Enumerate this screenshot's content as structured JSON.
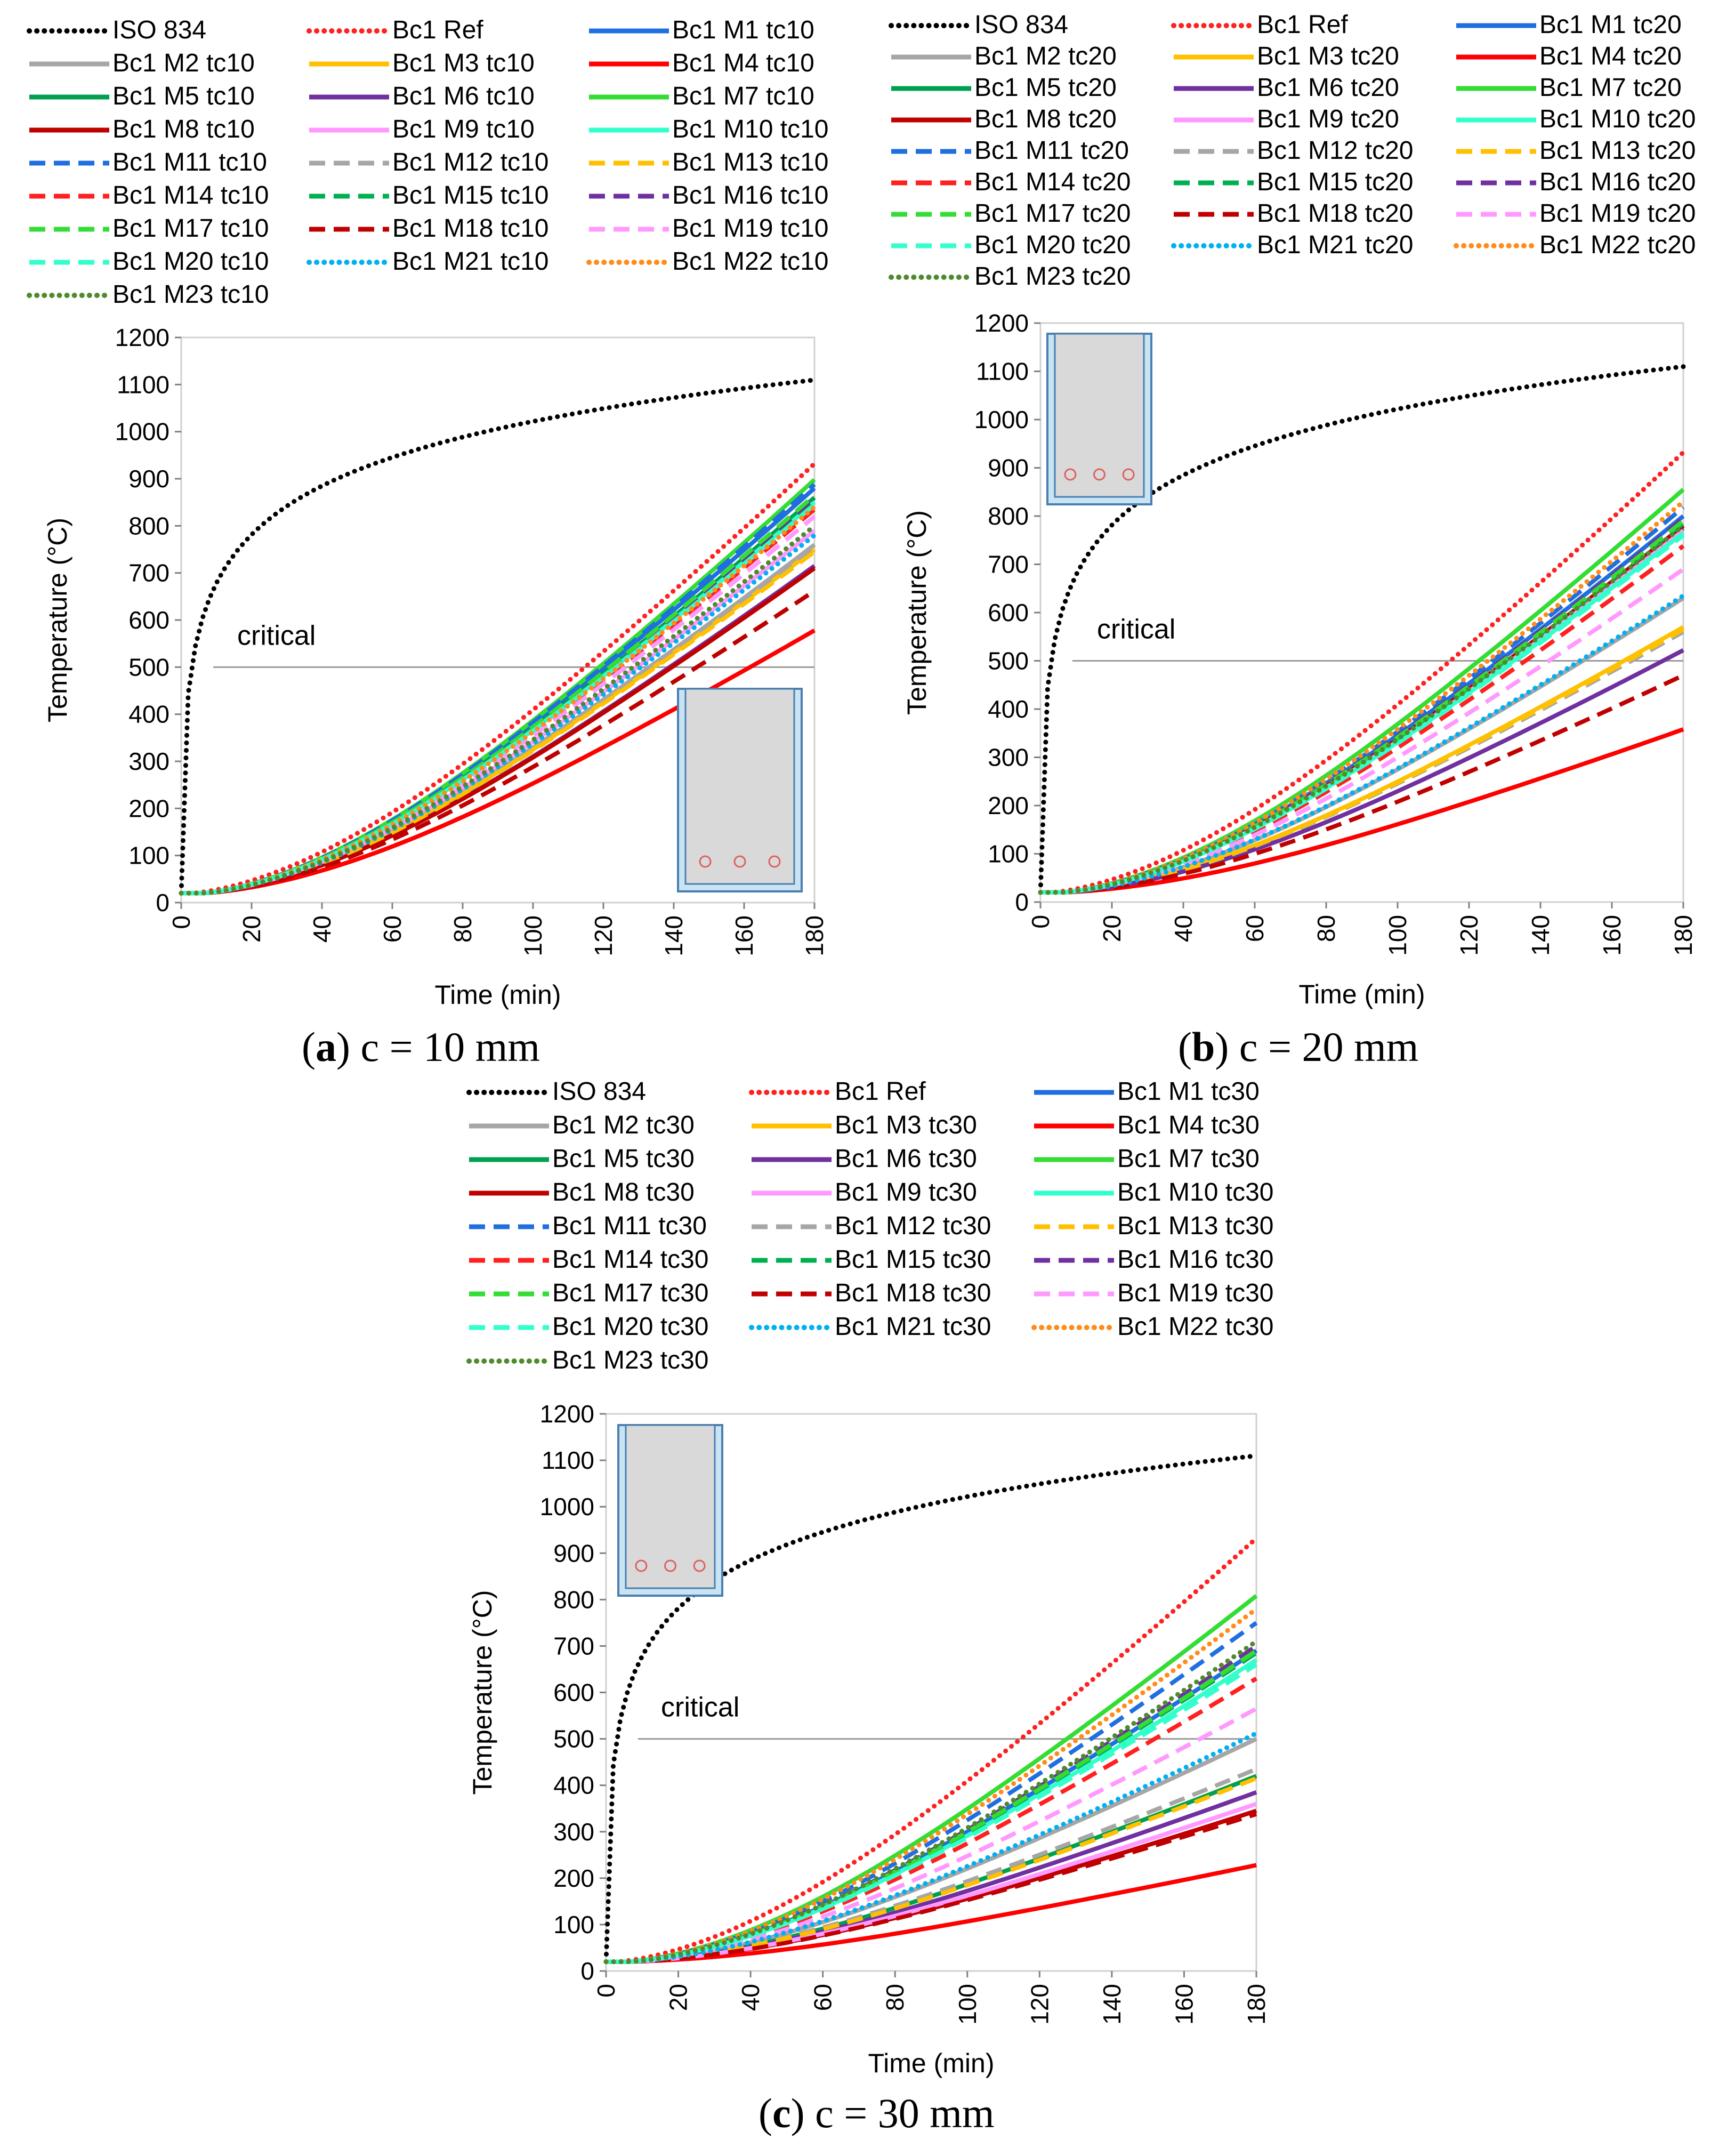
{
  "chart_data": [
    {
      "type": "line",
      "panel": "a",
      "caption_letter": "a",
      "caption_text": " c = 10 mm",
      "xlabel": "Time (min)",
      "ylabel": "Temperature (°C)",
      "xlim": [
        0,
        180
      ],
      "ylim": [
        0,
        1200
      ],
      "xticks": [
        "0",
        "20",
        "40",
        "60",
        "80",
        "100",
        "120",
        "140",
        "160",
        "180"
      ],
      "yticks": [
        "0",
        "100",
        "200",
        "300",
        "400",
        "500",
        "600",
        "700",
        "800",
        "900",
        "1000",
        "1100",
        "1200"
      ],
      "critical_label": "critical",
      "critical_value": 500,
      "inset": "beam cross-section, insulation on sides and bottom, 3 rebars",
      "series": [
        {
          "name": "ISO 834",
          "color": "#000000",
          "style": "dot",
          "end": 1110
        },
        {
          "name": "Bc1 Ref",
          "color": "#ff2020",
          "style": "dot",
          "end": 932
        },
        {
          "name": "Bc1 M1 tc10",
          "color": "#1f6fe0",
          "style": "solid",
          "end": 880
        },
        {
          "name": "Bc1 M2 tc10",
          "color": "#a6a6a6",
          "style": "solid",
          "end": 760
        },
        {
          "name": "Bc1 M3 tc10",
          "color": "#ffc000",
          "style": "solid",
          "end": 750
        },
        {
          "name": "Bc1 M4 tc10",
          "color": "#ff0000",
          "style": "solid",
          "end": 578
        },
        {
          "name": "Bc1 M5 tc10",
          "color": "#00a050",
          "style": "solid",
          "end": 860
        },
        {
          "name": "Bc1 M6 tc10",
          "color": "#7030a0",
          "style": "solid",
          "end": 715
        },
        {
          "name": "Bc1 M7 tc10",
          "color": "#33dd33",
          "style": "solid",
          "end": 898
        },
        {
          "name": "Bc1 M8 tc10",
          "color": "#c00000",
          "style": "solid",
          "end": 710
        },
        {
          "name": "Bc1 M9 tc10",
          "color": "#ff99ff",
          "style": "solid",
          "end": 790
        },
        {
          "name": "Bc1 M10 tc10",
          "color": "#33ffcc",
          "style": "solid",
          "end": 850
        },
        {
          "name": "Bc1 M11 tc10",
          "color": "#1f6fe0",
          "style": "dash",
          "end": 888
        },
        {
          "name": "Bc1 M12 tc10",
          "color": "#a6a6a6",
          "style": "dash",
          "end": 755
        },
        {
          "name": "Bc1 M13 tc10",
          "color": "#ffc000",
          "style": "dash",
          "end": 745
        },
        {
          "name": "Bc1 M14 tc10",
          "color": "#ff2020",
          "style": "dash",
          "end": 835
        },
        {
          "name": "Bc1 M15 tc10",
          "color": "#00b050",
          "style": "dash",
          "end": 855
        },
        {
          "name": "Bc1 M16 tc10",
          "color": "#7030a0",
          "style": "dash",
          "end": 860
        },
        {
          "name": "Bc1 M17 tc10",
          "color": "#33dd33",
          "style": "dash",
          "end": 865
        },
        {
          "name": "Bc1 M18 tc10",
          "color": "#c00000",
          "style": "dash",
          "end": 662
        },
        {
          "name": "Bc1 M19 tc10",
          "color": "#ff99ff",
          "style": "dash",
          "end": 820
        },
        {
          "name": "Bc1 M20 tc10",
          "color": "#33ffcc",
          "style": "dash",
          "end": 845
        },
        {
          "name": "Bc1 M21 tc10",
          "color": "#00b0f0",
          "style": "dot",
          "end": 780
        },
        {
          "name": "Bc1 M22 tc10",
          "color": "#ff8c1a",
          "style": "dot",
          "end": 840
        },
        {
          "name": "Bc1 M23 tc10",
          "color": "#4f8a2c",
          "style": "dot",
          "end": 800
        }
      ]
    },
    {
      "type": "line",
      "panel": "b",
      "caption_letter": "b",
      "caption_text": " c = 20 mm",
      "xlabel": "Time (min)",
      "ylabel": "Temperature (°C)",
      "xlim": [
        0,
        180
      ],
      "ylim": [
        0,
        1200
      ],
      "xticks": [
        "0",
        "20",
        "40",
        "60",
        "80",
        "100",
        "120",
        "140",
        "160",
        "180"
      ],
      "yticks": [
        "0",
        "100",
        "200",
        "300",
        "400",
        "500",
        "600",
        "700",
        "800",
        "900",
        "1000",
        "1100",
        "1200"
      ],
      "critical_label": "critical",
      "critical_value": 500,
      "inset": "beam cross-section, insulation on sides and bottom, 3 rebars",
      "series": [
        {
          "name": "ISO 834",
          "color": "#000000",
          "style": "dot",
          "end": 1110
        },
        {
          "name": "Bc1 Ref",
          "color": "#ff2020",
          "style": "dot",
          "end": 932
        },
        {
          "name": "Bc1 M1 tc20",
          "color": "#1f6fe0",
          "style": "solid",
          "end": 800
        },
        {
          "name": "Bc1 M2 tc20",
          "color": "#a6a6a6",
          "style": "solid",
          "end": 630
        },
        {
          "name": "Bc1 M3 tc20",
          "color": "#ffc000",
          "style": "solid",
          "end": 570
        },
        {
          "name": "Bc1 M4 tc20",
          "color": "#ff0000",
          "style": "solid",
          "end": 358
        },
        {
          "name": "Bc1 M5 tc20",
          "color": "#00a050",
          "style": "solid",
          "end": 775
        },
        {
          "name": "Bc1 M6 tc20",
          "color": "#7030a0",
          "style": "solid",
          "end": 522
        },
        {
          "name": "Bc1 M7 tc20",
          "color": "#33dd33",
          "style": "solid",
          "end": 855
        },
        {
          "name": "Bc1 M8 tc20",
          "color": "#c00000",
          "style": "solid",
          "end": 780
        },
        {
          "name": "Bc1 M9 tc20",
          "color": "#ff99ff",
          "style": "solid",
          "end": 770
        },
        {
          "name": "Bc1 M10 tc20",
          "color": "#33ffcc",
          "style": "solid",
          "end": 765
        },
        {
          "name": "Bc1 M11 tc20",
          "color": "#1f6fe0",
          "style": "dash",
          "end": 818
        },
        {
          "name": "Bc1 M12 tc20",
          "color": "#a6a6a6",
          "style": "dash",
          "end": 560
        },
        {
          "name": "Bc1 M13 tc20",
          "color": "#ffc000",
          "style": "dash",
          "end": 565
        },
        {
          "name": "Bc1 M14 tc20",
          "color": "#ff2020",
          "style": "dash",
          "end": 738
        },
        {
          "name": "Bc1 M15 tc20",
          "color": "#00b050",
          "style": "dash",
          "end": 785
        },
        {
          "name": "Bc1 M16 tc20",
          "color": "#7030a0",
          "style": "dash",
          "end": 795
        },
        {
          "name": "Bc1 M17 tc20",
          "color": "#33dd33",
          "style": "dash",
          "end": 790
        },
        {
          "name": "Bc1 M18 tc20",
          "color": "#c00000",
          "style": "dash",
          "end": 470
        },
        {
          "name": "Bc1 M19 tc20",
          "color": "#ff99ff",
          "style": "dash",
          "end": 690
        },
        {
          "name": "Bc1 M20 tc20",
          "color": "#33ffcc",
          "style": "dash",
          "end": 760
        },
        {
          "name": "Bc1 M21 tc20",
          "color": "#00b0f0",
          "style": "dot",
          "end": 635
        },
        {
          "name": "Bc1 M22 tc20",
          "color": "#ff8c1a",
          "style": "dot",
          "end": 830
        },
        {
          "name": "Bc1 M23 tc20",
          "color": "#4f8a2c",
          "style": "dot",
          "end": 780
        }
      ]
    },
    {
      "type": "line",
      "panel": "c",
      "caption_letter": "c",
      "caption_text": " c = 30 mm",
      "xlabel": "Time (min)",
      "ylabel": "Temperature (°C)",
      "xlim": [
        0,
        180
      ],
      "ylim": [
        0,
        1200
      ],
      "xticks": [
        "0",
        "20",
        "40",
        "60",
        "80",
        "100",
        "120",
        "140",
        "160",
        "180"
      ],
      "yticks": [
        "0",
        "100",
        "200",
        "300",
        "400",
        "500",
        "600",
        "700",
        "800",
        "900",
        "1000",
        "1100",
        "1200"
      ],
      "critical_label": "critical",
      "critical_value": 500,
      "inset": "beam cross-section, insulation on sides and bottom, 3 rebars",
      "series": [
        {
          "name": "ISO 834",
          "color": "#000000",
          "style": "dot",
          "end": 1110
        },
        {
          "name": "Bc1 Ref",
          "color": "#ff2020",
          "style": "dot",
          "end": 932
        },
        {
          "name": "Bc1 M1 tc30",
          "color": "#1f6fe0",
          "style": "solid",
          "end": 690
        },
        {
          "name": "Bc1 M2 tc30",
          "color": "#a6a6a6",
          "style": "solid",
          "end": 500
        },
        {
          "name": "Bc1 M3 tc30",
          "color": "#ffc000",
          "style": "solid",
          "end": 420
        },
        {
          "name": "Bc1 M4 tc30",
          "color": "#ff0000",
          "style": "solid",
          "end": 228
        },
        {
          "name": "Bc1 M5 tc30",
          "color": "#00a050",
          "style": "solid",
          "end": 420
        },
        {
          "name": "Bc1 M6 tc30",
          "color": "#7030a0",
          "style": "solid",
          "end": 385
        },
        {
          "name": "Bc1 M7 tc30",
          "color": "#33dd33",
          "style": "solid",
          "end": 808
        },
        {
          "name": "Bc1 M8 tc30",
          "color": "#c00000",
          "style": "solid",
          "end": 345
        },
        {
          "name": "Bc1 M9 tc30",
          "color": "#ff99ff",
          "style": "solid",
          "end": 360
        },
        {
          "name": "Bc1 M10 tc30",
          "color": "#33ffcc",
          "style": "solid",
          "end": 670
        },
        {
          "name": "Bc1 M11 tc30",
          "color": "#1f6fe0",
          "style": "dash",
          "end": 750
        },
        {
          "name": "Bc1 M12 tc30",
          "color": "#a6a6a6",
          "style": "dash",
          "end": 435
        },
        {
          "name": "Bc1 M13 tc30",
          "color": "#ffc000",
          "style": "dash",
          "end": 415
        },
        {
          "name": "Bc1 M14 tc30",
          "color": "#ff2020",
          "style": "dash",
          "end": 630
        },
        {
          "name": "Bc1 M15 tc30",
          "color": "#00b050",
          "style": "dash",
          "end": 685
        },
        {
          "name": "Bc1 M16 tc30",
          "color": "#7030a0",
          "style": "dash",
          "end": 700
        },
        {
          "name": "Bc1 M17 tc30",
          "color": "#33dd33",
          "style": "dash",
          "end": 690
        },
        {
          "name": "Bc1 M18 tc30",
          "color": "#c00000",
          "style": "dash",
          "end": 338
        },
        {
          "name": "Bc1 M19 tc30",
          "color": "#ff99ff",
          "style": "dash",
          "end": 565
        },
        {
          "name": "Bc1 M20 tc30",
          "color": "#33ffcc",
          "style": "dash",
          "end": 660
        },
        {
          "name": "Bc1 M21 tc30",
          "color": "#00b0f0",
          "style": "dot",
          "end": 512
        },
        {
          "name": "Bc1 M22 tc30",
          "color": "#ff8c1a",
          "style": "dot",
          "end": 780
        },
        {
          "name": "Bc1 M23 tc30",
          "color": "#4f8a2c",
          "style": "dot",
          "end": 710
        }
      ]
    }
  ]
}
